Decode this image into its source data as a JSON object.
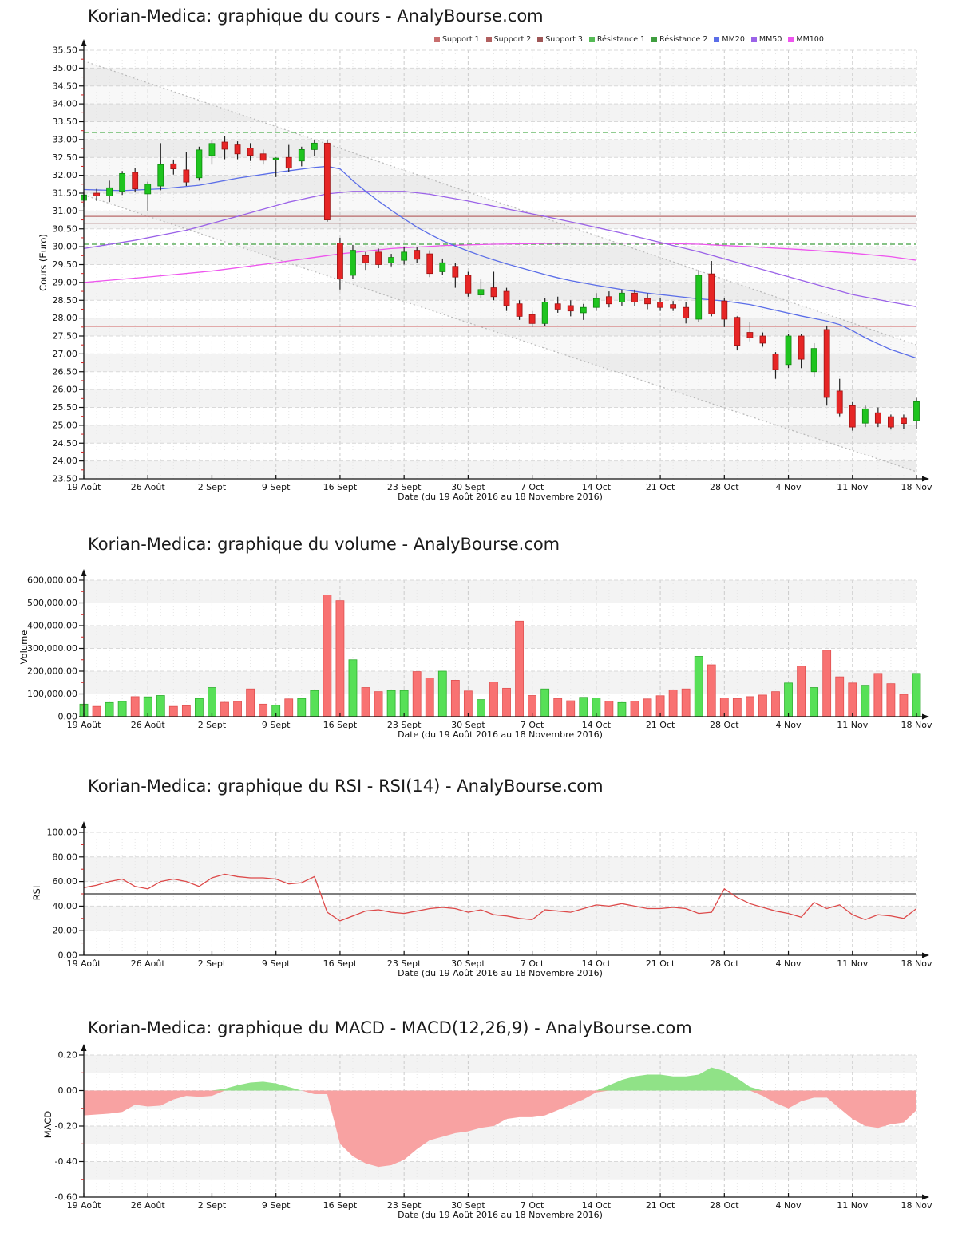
{
  "page": {
    "background": "#ffffff"
  },
  "chart_data": [
    {
      "type": "candlestick",
      "title": "Korian-Medica: graphique du cours - AnalyBourse.com",
      "ylabel": "Cours (Euro)",
      "xlabel": "Date (du 19 Août 2016 au 18 Novembre 2016)",
      "ylim": [
        23.5,
        35.5
      ],
      "ytick_step": 0.5,
      "x_week_labels": [
        "19 Août",
        "26 Août",
        "2 Sept",
        "9 Sept",
        "16 Sept",
        "23 Sept",
        "30 Sept",
        "7 Oct",
        "14 Oct",
        "21 Oct",
        "28 Oct",
        "4 Nov",
        "11 Nov",
        "18 Nov"
      ],
      "legend": [
        {
          "label": "Support 1",
          "color": "#c86e6e"
        },
        {
          "label": "Support 2",
          "color": "#b05f5f"
        },
        {
          "label": "Support 3",
          "color": "#9e5656"
        },
        {
          "label": "Résistance 1",
          "color": "#55bb55"
        },
        {
          "label": "Résistance 2",
          "color": "#3f9e3f"
        },
        {
          "label": "MM20",
          "color": "#5b6ee8"
        },
        {
          "label": "MM50",
          "color": "#9b63e8"
        },
        {
          "label": "MM100",
          "color": "#ee55ee"
        }
      ],
      "candles_ohlc": [
        [
          31.3,
          31.55,
          31.1,
          31.45
        ],
        [
          31.5,
          31.62,
          31.28,
          31.42
        ],
        [
          31.42,
          31.85,
          31.25,
          31.65
        ],
        [
          31.55,
          32.12,
          31.45,
          32.05
        ],
        [
          32.08,
          32.2,
          31.52,
          31.62
        ],
        [
          31.48,
          31.82,
          31.0,
          31.75
        ],
        [
          31.7,
          32.9,
          31.58,
          32.3
        ],
        [
          32.32,
          32.42,
          32.02,
          32.18
        ],
        [
          32.15,
          32.66,
          31.7,
          31.81
        ],
        [
          31.93,
          32.8,
          31.85,
          32.71
        ],
        [
          32.55,
          33.0,
          32.3,
          32.89
        ],
        [
          32.93,
          33.1,
          32.45,
          32.73
        ],
        [
          32.85,
          32.95,
          32.45,
          32.6
        ],
        [
          32.76,
          32.9,
          32.4,
          32.56
        ],
        [
          32.6,
          32.72,
          32.3,
          32.42
        ],
        [
          32.44,
          32.5,
          31.95,
          32.48
        ],
        [
          32.5,
          32.85,
          32.1,
          32.2
        ],
        [
          32.4,
          32.8,
          32.25,
          32.72
        ],
        [
          32.72,
          33.0,
          32.55,
          32.9
        ],
        [
          32.9,
          33.0,
          30.7,
          30.75
        ],
        [
          30.1,
          30.25,
          28.8,
          29.1
        ],
        [
          29.2,
          30.05,
          29.1,
          29.9
        ],
        [
          29.75,
          29.85,
          29.35,
          29.55
        ],
        [
          29.85,
          29.95,
          29.4,
          29.5
        ],
        [
          29.55,
          29.8,
          29.45,
          29.7
        ],
        [
          29.62,
          30.0,
          29.5,
          29.85
        ],
        [
          29.9,
          30.0,
          29.55,
          29.65
        ],
        [
          29.8,
          29.9,
          29.15,
          29.25
        ],
        [
          29.3,
          29.65,
          29.2,
          29.55
        ],
        [
          29.45,
          29.55,
          28.85,
          29.15
        ],
        [
          29.2,
          29.3,
          28.6,
          28.7
        ],
        [
          28.65,
          29.1,
          28.55,
          28.8
        ],
        [
          28.85,
          29.3,
          28.5,
          28.6
        ],
        [
          28.75,
          28.85,
          28.2,
          28.35
        ],
        [
          28.4,
          28.5,
          27.95,
          28.05
        ],
        [
          28.1,
          28.2,
          27.75,
          27.85
        ],
        [
          27.85,
          28.55,
          27.78,
          28.45
        ],
        [
          28.4,
          28.6,
          28.15,
          28.25
        ],
        [
          28.35,
          28.5,
          28.05,
          28.2
        ],
        [
          28.15,
          28.4,
          27.95,
          28.3
        ],
        [
          28.3,
          28.7,
          28.2,
          28.55
        ],
        [
          28.6,
          28.75,
          28.3,
          28.4
        ],
        [
          28.45,
          28.8,
          28.35,
          28.7
        ],
        [
          28.7,
          28.8,
          28.35,
          28.45
        ],
        [
          28.55,
          28.7,
          28.25,
          28.4
        ],
        [
          28.45,
          28.55,
          28.2,
          28.3
        ],
        [
          28.38,
          28.48,
          28.2,
          28.28
        ],
        [
          28.3,
          28.45,
          27.85,
          28.0
        ],
        [
          27.97,
          29.35,
          27.9,
          29.2
        ],
        [
          29.24,
          29.6,
          28.05,
          28.12
        ],
        [
          28.48,
          28.55,
          27.75,
          27.97
        ],
        [
          28.02,
          28.05,
          27.1,
          27.24
        ],
        [
          27.6,
          27.9,
          27.35,
          27.45
        ],
        [
          27.5,
          27.6,
          27.2,
          27.3
        ],
        [
          27.0,
          27.05,
          26.3,
          26.56
        ],
        [
          26.7,
          27.55,
          26.6,
          27.5
        ],
        [
          27.5,
          27.55,
          26.6,
          26.85
        ],
        [
          26.5,
          27.3,
          26.35,
          27.15
        ],
        [
          27.68,
          27.77,
          25.55,
          25.78
        ],
        [
          25.96,
          26.3,
          25.25,
          25.33
        ],
        [
          25.55,
          25.65,
          24.85,
          24.95
        ],
        [
          25.06,
          25.55,
          24.95,
          25.46
        ],
        [
          25.35,
          25.5,
          24.95,
          25.06
        ],
        [
          25.24,
          25.3,
          24.88,
          24.95
        ],
        [
          25.2,
          25.3,
          24.9,
          25.05
        ],
        [
          25.13,
          25.77,
          24.9,
          25.66
        ]
      ],
      "mm20": [
        [
          0,
          31.6
        ],
        [
          3,
          31.57
        ],
        [
          6,
          31.62
        ],
        [
          9,
          31.72
        ],
        [
          12,
          31.92
        ],
        [
          15,
          32.08
        ],
        [
          18,
          32.22
        ],
        [
          19,
          32.25
        ],
        [
          20,
          32.18
        ],
        [
          21,
          31.85
        ],
        [
          22,
          31.55
        ],
        [
          23,
          31.28
        ],
        [
          24,
          31.02
        ],
        [
          25,
          30.78
        ],
        [
          26,
          30.55
        ],
        [
          27,
          30.35
        ],
        [
          28,
          30.17
        ],
        [
          29,
          30.02
        ],
        [
          30,
          29.88
        ],
        [
          31,
          29.75
        ],
        [
          32,
          29.63
        ],
        [
          33,
          29.52
        ],
        [
          34,
          29.42
        ],
        [
          35,
          29.32
        ],
        [
          36,
          29.22
        ],
        [
          37,
          29.13
        ],
        [
          38,
          29.05
        ],
        [
          40,
          28.92
        ],
        [
          42,
          28.8
        ],
        [
          44,
          28.7
        ],
        [
          46,
          28.62
        ],
        [
          48,
          28.54
        ],
        [
          50,
          28.48
        ],
        [
          52,
          28.38
        ],
        [
          54,
          28.22
        ],
        [
          56,
          28.06
        ],
        [
          58,
          27.92
        ],
        [
          59,
          27.82
        ],
        [
          60,
          27.65
        ],
        [
          61,
          27.45
        ],
        [
          62,
          27.28
        ],
        [
          63,
          27.12
        ],
        [
          64,
          27.0
        ],
        [
          65,
          26.88
        ]
      ],
      "mm50": [
        [
          0,
          29.95
        ],
        [
          4,
          30.18
        ],
        [
          8,
          30.46
        ],
        [
          12,
          30.85
        ],
        [
          16,
          31.25
        ],
        [
          19,
          31.48
        ],
        [
          21,
          31.55
        ],
        [
          25,
          31.55
        ],
        [
          27,
          31.47
        ],
        [
          30,
          31.28
        ],
        [
          33,
          31.06
        ],
        [
          36,
          30.85
        ],
        [
          39,
          30.62
        ],
        [
          42,
          30.38
        ],
        [
          45,
          30.12
        ],
        [
          48,
          29.86
        ],
        [
          51,
          29.56
        ],
        [
          54,
          29.26
        ],
        [
          57,
          28.96
        ],
        [
          60,
          28.66
        ],
        [
          63,
          28.45
        ],
        [
          65,
          28.32
        ]
      ],
      "mm100": [
        [
          0,
          29.0
        ],
        [
          5,
          29.15
        ],
        [
          10,
          29.32
        ],
        [
          15,
          29.55
        ],
        [
          20,
          29.8
        ],
        [
          24,
          29.95
        ],
        [
          28,
          30.03
        ],
        [
          32,
          30.07
        ],
        [
          38,
          30.1
        ],
        [
          44,
          30.1
        ],
        [
          48,
          30.07
        ],
        [
          52,
          30.0
        ],
        [
          56,
          29.92
        ],
        [
          60,
          29.82
        ],
        [
          63,
          29.72
        ],
        [
          65,
          29.62
        ]
      ],
      "support_lines": [
        {
          "label": "Support 1",
          "value": 30.85,
          "color": "#b96a6a",
          "style": "solid"
        },
        {
          "label": "Support 2",
          "value": 30.66,
          "color": "#985555",
          "style": "solid"
        },
        {
          "label": "Support 3",
          "value": 27.77,
          "color": "#d06060",
          "style": "solid"
        }
      ],
      "resistance_lines": [
        {
          "label": "Résistance 1",
          "value": 33.2,
          "color": "#4fae4f",
          "style": "dashed"
        },
        {
          "label": "Résistance 2",
          "value": 30.07,
          "color": "#3f9e3f",
          "style": "dashed"
        }
      ],
      "channel": {
        "upper": [
          [
            0,
            35.2
          ],
          [
            65,
            27.25
          ]
        ],
        "lower": [
          [
            0,
            31.45
          ],
          [
            65,
            23.7
          ]
        ]
      },
      "colors": {
        "up": "#1fc41f",
        "down": "#e62525",
        "wick": "#222222",
        "mm20": "#5b6ee8",
        "mm50": "#9b63e8",
        "mm100": "#ee55ee",
        "channel": "#b8b8b8"
      }
    },
    {
      "type": "bar",
      "title": "Korian-Medica: graphique du volume - AnalyBourse.com",
      "ylabel": "Volume",
      "xlabel": "Date (du 19 Août 2016 au 18 Novembre 2016)",
      "ylim": [
        0,
        600000
      ],
      "ytick_step": 100000,
      "values": [
        55000,
        45000,
        62000,
        67000,
        88000,
        87000,
        93000,
        45000,
        48000,
        80000,
        128000,
        63000,
        67000,
        122000,
        55000,
        50000,
        78000,
        80000,
        115000,
        535000,
        510000,
        250000,
        128000,
        110000,
        115000,
        115000,
        198000,
        170000,
        200000,
        160000,
        113000,
        75000,
        152000,
        125000,
        420000,
        93000,
        122000,
        80000,
        70000,
        85000,
        82000,
        68000,
        62000,
        68000,
        78000,
        92000,
        118000,
        122000,
        265000,
        228000,
        82000,
        80000,
        88000,
        95000,
        110000,
        148000,
        222000,
        128000,
        292000,
        175000,
        148000,
        138000,
        190000,
        145000,
        98000,
        190000
      ],
      "colors": {
        "up": "#57e057",
        "down": "#f87272"
      }
    },
    {
      "type": "line",
      "title": "Korian-Medica: graphique du RSI - RSI(14) - AnalyBourse.com",
      "ylabel": "RSI",
      "xlabel": "Date (du 19 Août 2016 au 18 Novembre 2016)",
      "ylim": [
        0,
        100
      ],
      "ytick_step": 20,
      "mid_level": 50,
      "values": [
        55,
        57,
        60,
        62,
        56,
        54,
        60,
        62,
        60,
        56,
        63,
        66,
        64,
        63,
        63,
        62,
        58,
        59,
        64,
        35,
        28,
        32,
        36,
        37,
        35,
        34,
        36,
        38,
        39,
        38,
        35,
        37,
        33,
        32,
        30,
        29,
        37,
        36,
        35,
        38,
        41,
        40,
        42,
        40,
        38,
        38,
        39,
        38,
        34,
        35,
        54,
        47,
        42,
        39,
        36,
        34,
        31,
        43,
        38,
        41,
        33,
        29,
        33,
        32,
        30,
        38
      ],
      "colors": {
        "line": "#dd4a4a",
        "mid_line": "#555555"
      }
    },
    {
      "type": "area",
      "title": "Korian-Medica: graphique du MACD - MACD(12,26,9) - AnalyBourse.com",
      "ylabel": "MACD",
      "xlabel": "Date (du 19 Août 2016 au 18 Novembre 2016)",
      "ylim": [
        -0.6,
        0.2
      ],
      "ytick_step": 0.2,
      "values": [
        -0.14,
        -0.135,
        -0.13,
        -0.12,
        -0.08,
        -0.09,
        -0.085,
        -0.05,
        -0.03,
        -0.035,
        -0.03,
        0.01,
        0.03,
        0.045,
        0.05,
        0.04,
        0.02,
        0.0,
        -0.02,
        -0.02,
        -0.3,
        -0.37,
        -0.41,
        -0.43,
        -0.42,
        -0.39,
        -0.33,
        -0.28,
        -0.26,
        -0.24,
        -0.23,
        -0.21,
        -0.2,
        -0.16,
        -0.15,
        -0.15,
        -0.14,
        -0.11,
        -0.08,
        -0.05,
        -0.01,
        0.03,
        0.06,
        0.08,
        0.09,
        0.09,
        0.08,
        0.08,
        0.09,
        0.13,
        0.11,
        0.07,
        0.02,
        -0.03,
        -0.07,
        -0.1,
        -0.06,
        -0.04,
        -0.04,
        -0.1,
        -0.16,
        -0.2,
        -0.21,
        -0.19,
        -0.18,
        -0.11
      ],
      "colors": {
        "positive": "#90e287",
        "negative": "#f8a2a2"
      }
    }
  ]
}
